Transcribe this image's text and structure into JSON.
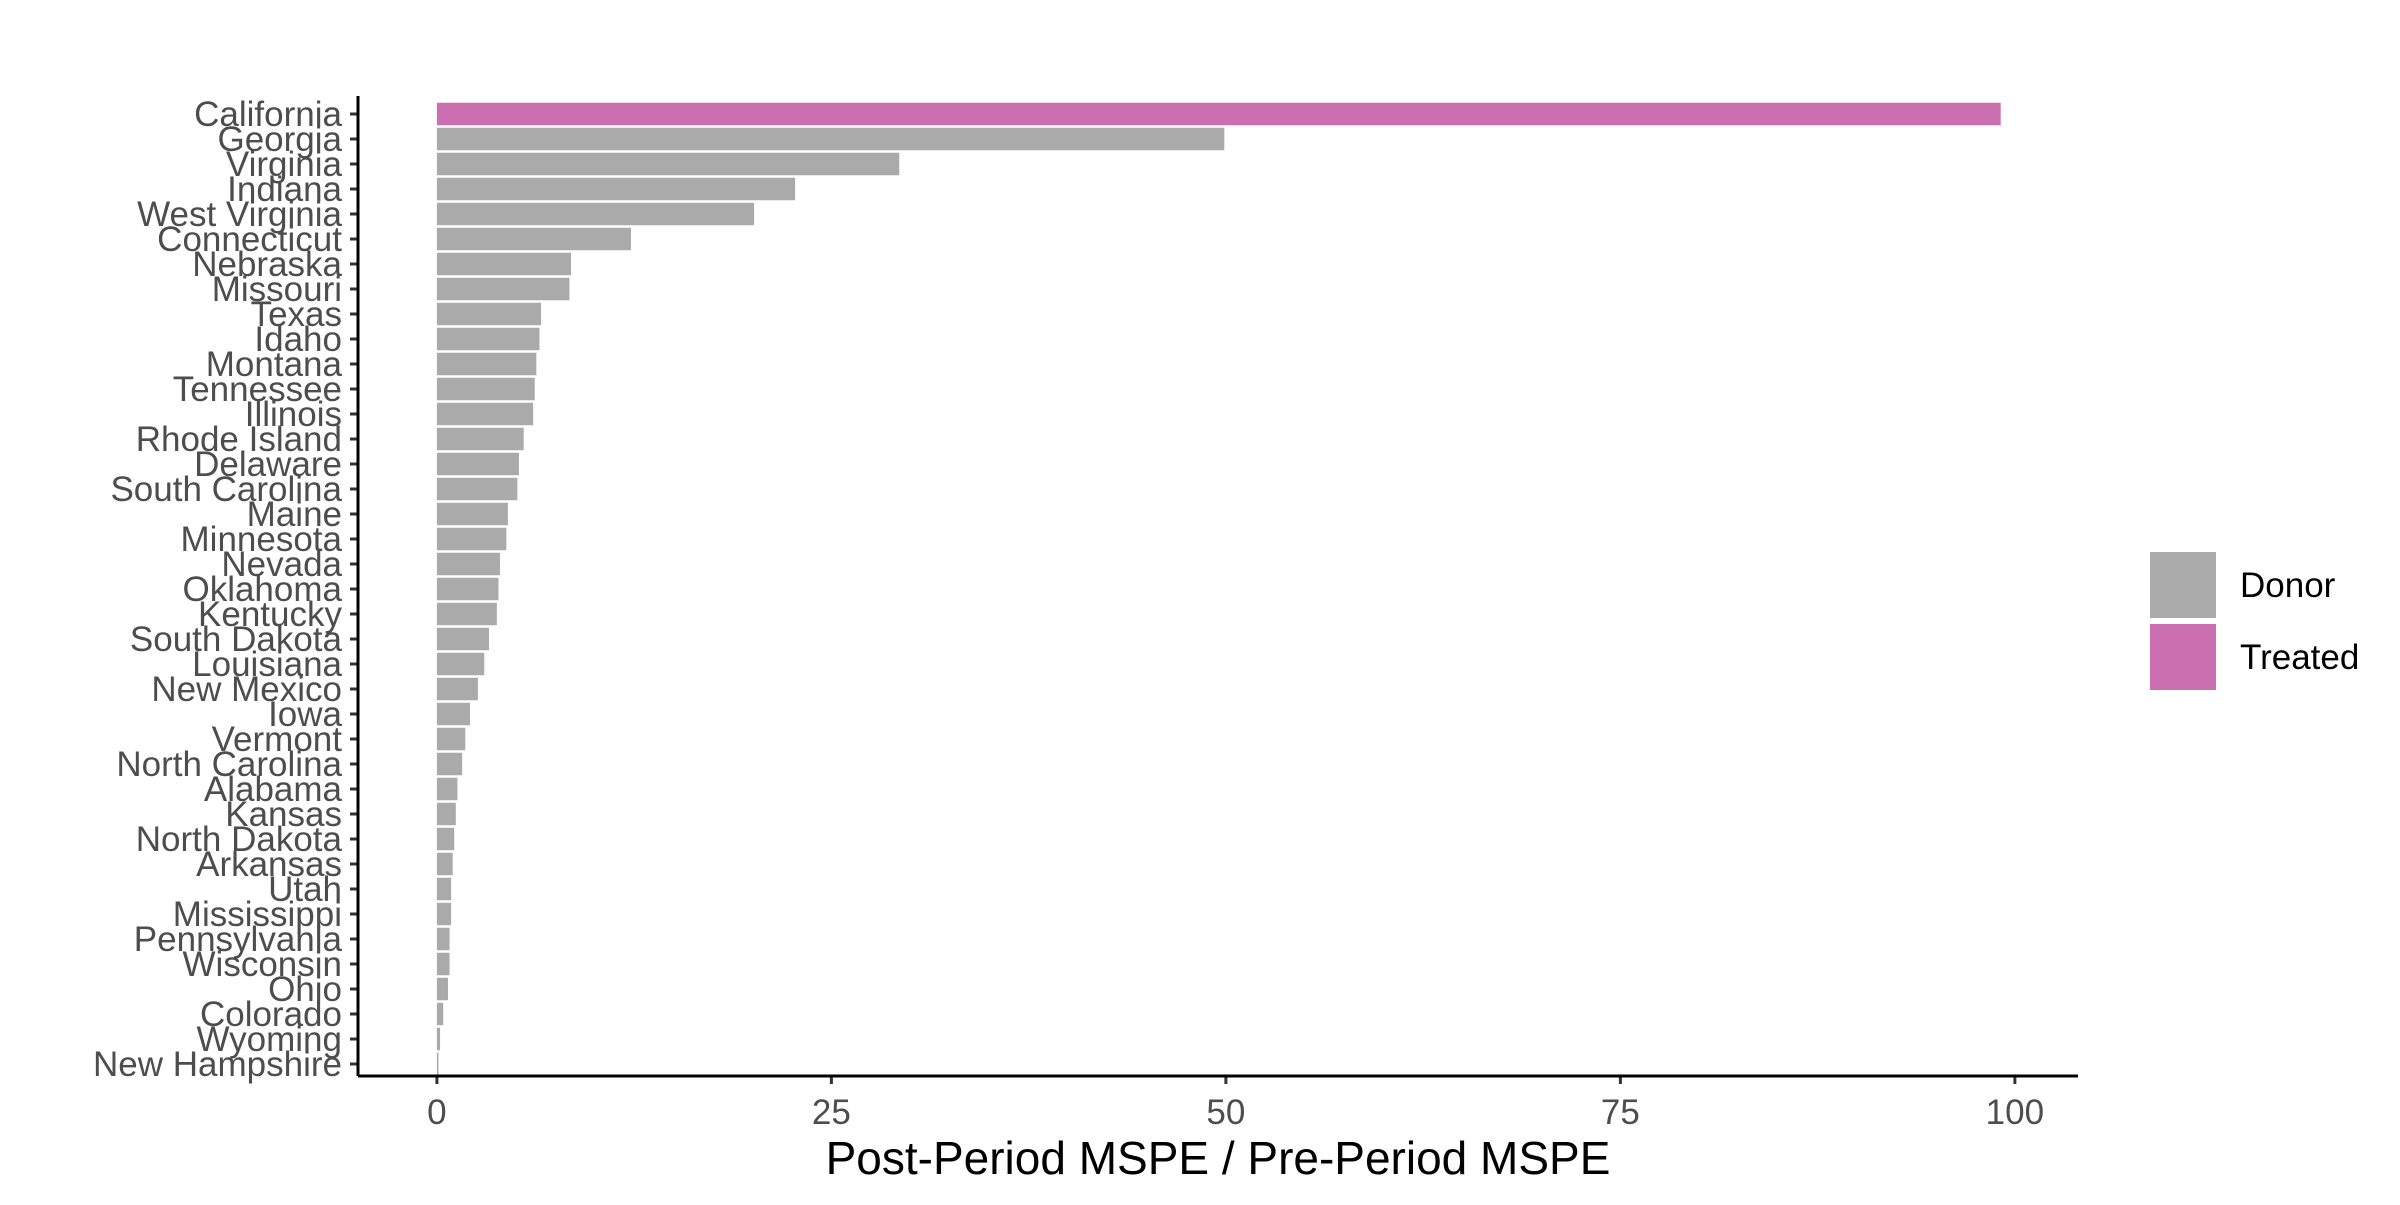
{
  "chart_data": {
    "type": "bar",
    "orientation": "horizontal",
    "xlabel": "Post-Period MSPE / Pre-Period MSPE",
    "ylabel": "",
    "xlim": [
      -5,
      104
    ],
    "xticks": [
      0,
      25,
      50,
      75,
      100
    ],
    "grid": false,
    "legend_position": "right",
    "legend": [
      {
        "label": "Donor",
        "color": "#aaaaaa"
      },
      {
        "label": "Treated",
        "color": "#cc6fb0"
      }
    ],
    "categories": [
      "California",
      "Georgia",
      "Virginia",
      "Indiana",
      "West Virginia",
      "Connecticut",
      "Nebraska",
      "Missouri",
      "Texas",
      "Idaho",
      "Montana",
      "Tennessee",
      "Illinois",
      "Rhode Island",
      "Delaware",
      "South Carolina",
      "Maine",
      "Minnesota",
      "Nevada",
      "Oklahoma",
      "Kentucky",
      "South Dakota",
      "Louisiana",
      "New Mexico",
      "Iowa",
      "Vermont",
      "North Carolina",
      "Alabama",
      "Kansas",
      "North Dakota",
      "Arkansas",
      "Utah",
      "Mississippi",
      "Pennsylvania",
      "Wisconsin",
      "Ohio",
      "Colorado",
      "Wyoming",
      "New Hampshire"
    ],
    "values": [
      99.1,
      49.9,
      29.3,
      22.7,
      20.1,
      12.3,
      8.5,
      8.4,
      6.6,
      6.5,
      6.3,
      6.2,
      6.1,
      5.5,
      5.2,
      5.1,
      4.5,
      4.4,
      4.0,
      3.9,
      3.8,
      3.3,
      3.0,
      2.6,
      2.1,
      1.8,
      1.6,
      1.3,
      1.2,
      1.1,
      1.0,
      0.9,
      0.9,
      0.8,
      0.8,
      0.7,
      0.4,
      0.2,
      0.1
    ],
    "groups": [
      "Treated",
      "Donor",
      "Donor",
      "Donor",
      "Donor",
      "Donor",
      "Donor",
      "Donor",
      "Donor",
      "Donor",
      "Donor",
      "Donor",
      "Donor",
      "Donor",
      "Donor",
      "Donor",
      "Donor",
      "Donor",
      "Donor",
      "Donor",
      "Donor",
      "Donor",
      "Donor",
      "Donor",
      "Donor",
      "Donor",
      "Donor",
      "Donor",
      "Donor",
      "Donor",
      "Donor",
      "Donor",
      "Donor",
      "Donor",
      "Donor",
      "Donor",
      "Donor",
      "Donor",
      "Donor"
    ]
  }
}
